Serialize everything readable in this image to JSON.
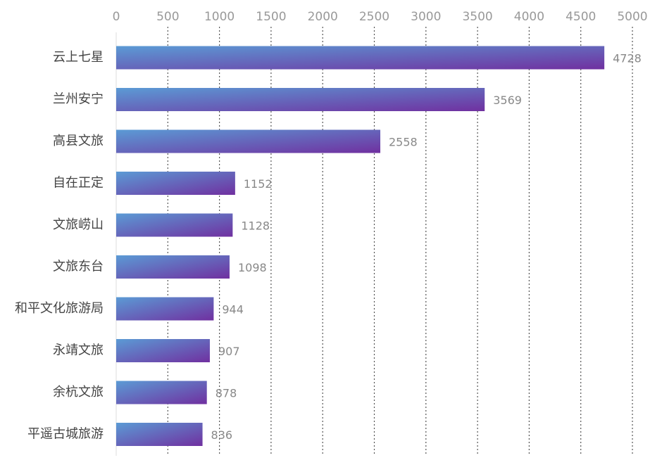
{
  "chart_data": {
    "type": "bar",
    "orientation": "horizontal",
    "categories": [
      "云上七星",
      "兰州安宁",
      "高县文旅",
      "自在正定",
      "文旅崂山",
      "文旅东台",
      "和平文化旅游局",
      "永靖文旅",
      "余杭文旅",
      "平遥古城旅游"
    ],
    "values": [
      4728,
      3569,
      2558,
      1152,
      1128,
      1098,
      944,
      907,
      878,
      836
    ],
    "x_ticks": [
      0,
      500,
      1000,
      1500,
      2000,
      2500,
      3000,
      3500,
      4000,
      4500,
      5000
    ],
    "xlim": [
      0,
      5000
    ],
    "title": "",
    "xlabel": "",
    "ylabel": "",
    "x_axis_position": "top",
    "grid": "vertical-dotted",
    "legend": "none",
    "bar_gradient": [
      "#5b9bd5",
      "#7030a0"
    ]
  }
}
